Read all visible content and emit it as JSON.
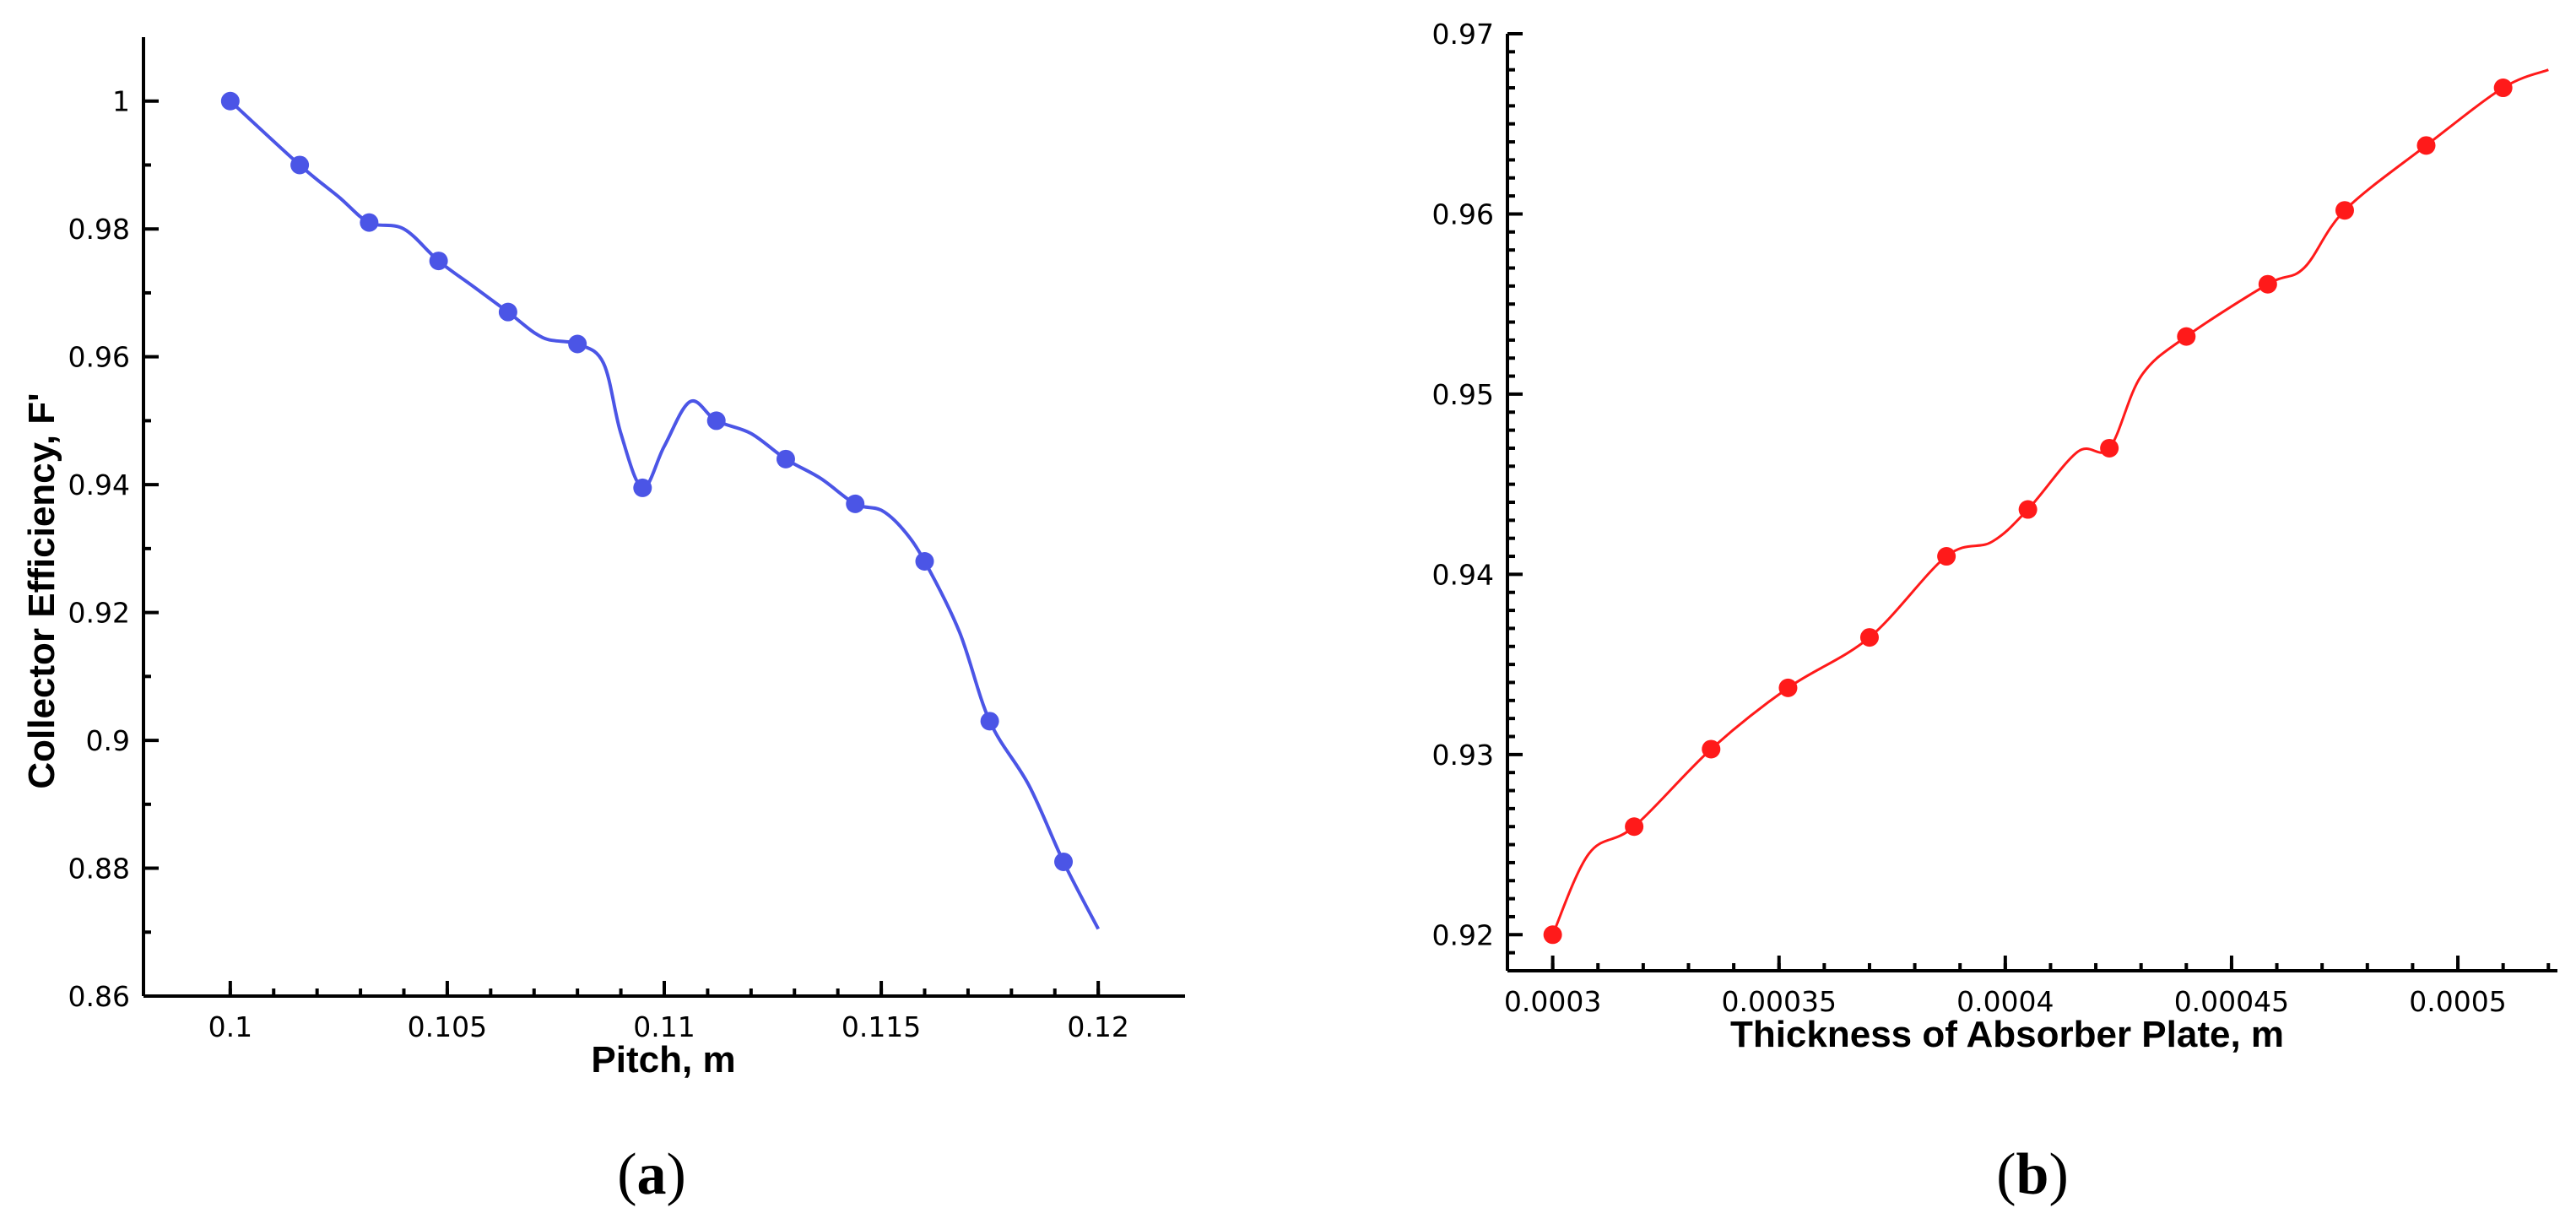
{
  "colors": {
    "a": "#4b55e6",
    "b": "#ff1a1a"
  },
  "chart_data": [
    {
      "type": "line",
      "panel": "a",
      "panel_label": {
        "open": "(",
        "letter": "a",
        "close": ")"
      },
      "xlabel": "Pitch, m",
      "ylabel": "Collector Efficiency, F'",
      "xlim": [
        0.098,
        0.122
      ],
      "ylim": [
        0.86,
        1.01
      ],
      "xticks": [
        0.1,
        0.105,
        0.11,
        0.115,
        0.12
      ],
      "xtick_labels": [
        "0.1",
        "0.105",
        "0.11",
        "0.115",
        "0.12"
      ],
      "xminor": [
        0.1,
        0.101,
        0.102,
        0.103,
        0.104,
        0.105,
        0.106,
        0.107,
        0.108,
        0.109,
        0.11,
        0.111,
        0.112,
        0.113,
        0.114,
        0.115,
        0.116,
        0.117,
        0.118,
        0.119,
        0.12
      ],
      "yticks": [
        0.86,
        0.88,
        0.9,
        0.92,
        0.94,
        0.96,
        0.98,
        1.0
      ],
      "ytick_labels": [
        "0.86",
        "0.88",
        "0.9",
        "0.92",
        "0.94",
        "0.96",
        "0.98",
        "1"
      ],
      "yminor": [
        0.87,
        0.89,
        0.91,
        0.93,
        0.95,
        0.97,
        0.99
      ],
      "curve": [
        [
          0.1,
          1.0
        ],
        [
          0.1016,
          0.99
        ],
        [
          0.1025,
          0.985
        ],
        [
          0.1032,
          0.981
        ],
        [
          0.104,
          0.98
        ],
        [
          0.1048,
          0.975
        ],
        [
          0.1056,
          0.971
        ],
        [
          0.1064,
          0.967
        ],
        [
          0.1072,
          0.963
        ],
        [
          0.108,
          0.962
        ],
        [
          0.1086,
          0.959
        ],
        [
          0.109,
          0.948
        ],
        [
          0.1095,
          0.9395
        ],
        [
          0.11,
          0.946
        ],
        [
          0.1106,
          0.953
        ],
        [
          0.1112,
          0.95
        ],
        [
          0.112,
          0.948
        ],
        [
          0.1128,
          0.944
        ],
        [
          0.1136,
          0.941
        ],
        [
          0.1144,
          0.937
        ],
        [
          0.115,
          0.936
        ],
        [
          0.1155,
          0.933
        ],
        [
          0.116,
          0.928
        ],
        [
          0.1168,
          0.917
        ],
        [
          0.1175,
          0.903
        ],
        [
          0.1184,
          0.893
        ],
        [
          0.1192,
          0.881
        ],
        [
          0.12,
          0.8705
        ]
      ],
      "points": [
        [
          0.1,
          1.0
        ],
        [
          0.1016,
          0.99
        ],
        [
          0.1032,
          0.981
        ],
        [
          0.1048,
          0.975
        ],
        [
          0.1064,
          0.967
        ],
        [
          0.108,
          0.962
        ],
        [
          0.1095,
          0.9395
        ],
        [
          0.1112,
          0.95
        ],
        [
          0.1128,
          0.944
        ],
        [
          0.1144,
          0.937
        ],
        [
          0.116,
          0.928
        ],
        [
          0.1175,
          0.903
        ],
        [
          0.1192,
          0.881
        ]
      ]
    },
    {
      "type": "line",
      "panel": "b",
      "panel_label": {
        "open": "(",
        "letter": "b",
        "close": ")"
      },
      "xlabel": "Thickness of Absorber Plate, m",
      "ylabel": "",
      "xlim": [
        0.00029,
        0.000522
      ],
      "ylim": [
        0.918,
        0.97
      ],
      "xticks": [
        0.0003,
        0.00035,
        0.0004,
        0.00045,
        0.0005
      ],
      "xtick_labels": [
        "0.0003",
        "0.00035",
        "0.0004",
        "0.00045",
        "0.0005"
      ],
      "xminor": [
        0.0003,
        0.00031,
        0.00032,
        0.00033,
        0.00034,
        0.00035,
        0.00036,
        0.00037,
        0.00038,
        0.00039,
        0.0004,
        0.00041,
        0.00042,
        0.00043,
        0.00044,
        0.00045,
        0.00046,
        0.00047,
        0.00048,
        0.00049,
        0.0005,
        0.00051,
        0.00052
      ],
      "yticks": [
        0.92,
        0.93,
        0.94,
        0.95,
        0.96,
        0.97
      ],
      "ytick_labels": [
        "0.92",
        "0.93",
        "0.94",
        "0.95",
        "0.96",
        "0.97"
      ],
      "yminor": [
        0.919,
        0.921,
        0.922,
        0.923,
        0.924,
        0.925,
        0.926,
        0.927,
        0.928,
        0.929,
        0.931,
        0.932,
        0.933,
        0.934,
        0.935,
        0.936,
        0.937,
        0.938,
        0.939,
        0.941,
        0.942,
        0.943,
        0.944,
        0.945,
        0.946,
        0.947,
        0.948,
        0.949,
        0.951,
        0.952,
        0.953,
        0.954,
        0.955,
        0.956,
        0.957,
        0.958,
        0.959,
        0.961,
        0.962,
        0.963,
        0.964,
        0.965,
        0.966,
        0.967,
        0.968,
        0.969
      ],
      "curve": [
        [
          0.0003,
          0.92
        ],
        [
          0.000308,
          0.9245
        ],
        [
          0.000318,
          0.926
        ],
        [
          0.000335,
          0.9303
        ],
        [
          0.000352,
          0.9337
        ],
        [
          0.00037,
          0.9365
        ],
        [
          0.000387,
          0.941
        ],
        [
          0.000397,
          0.9418
        ],
        [
          0.000405,
          0.9436
        ],
        [
          0.000416,
          0.9468
        ],
        [
          0.000423,
          0.947
        ],
        [
          0.00043,
          0.951
        ],
        [
          0.00044,
          0.9532
        ],
        [
          0.000458,
          0.9561
        ],
        [
          0.000466,
          0.957
        ],
        [
          0.000475,
          0.9602
        ],
        [
          0.000493,
          0.9638
        ],
        [
          0.00051,
          0.967
        ],
        [
          0.00052,
          0.968
        ]
      ],
      "points": [
        [
          0.0003,
          0.92
        ],
        [
          0.000318,
          0.926
        ],
        [
          0.000335,
          0.9303
        ],
        [
          0.000352,
          0.9337
        ],
        [
          0.00037,
          0.9365
        ],
        [
          0.000387,
          0.941
        ],
        [
          0.000405,
          0.9436
        ],
        [
          0.000423,
          0.947
        ],
        [
          0.00044,
          0.9532
        ],
        [
          0.000458,
          0.9561
        ],
        [
          0.000475,
          0.9602
        ],
        [
          0.000493,
          0.9638
        ],
        [
          0.00051,
          0.967
        ]
      ]
    }
  ]
}
